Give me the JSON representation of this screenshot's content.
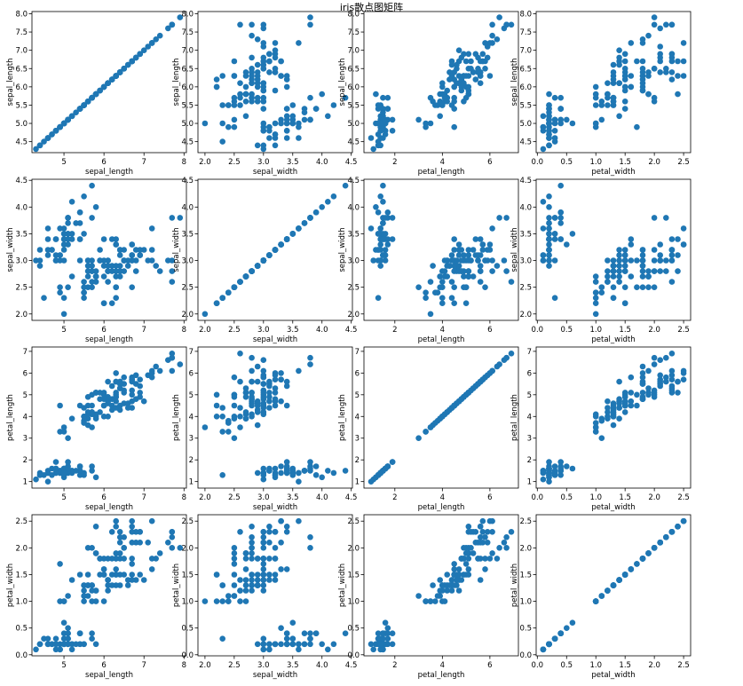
{
  "title": "iris散点图矩阵",
  "point_color": "#1f77b4",
  "chart_data": {
    "type": "scatter",
    "variables": [
      "sepal_length",
      "sepal_width",
      "petal_length",
      "petal_width"
    ],
    "samples": {
      "sepal_length": [
        5.1,
        4.9,
        4.7,
        4.6,
        5.0,
        5.4,
        4.6,
        5.0,
        4.4,
        4.9,
        5.4,
        4.8,
        4.8,
        4.3,
        5.8,
        5.7,
        5.4,
        5.1,
        5.7,
        5.1,
        5.4,
        5.1,
        4.6,
        5.1,
        4.8,
        5.0,
        5.0,
        5.2,
        5.2,
        4.7,
        4.8,
        5.4,
        5.2,
        5.5,
        4.9,
        5.0,
        5.5,
        4.9,
        4.4,
        5.1,
        5.0,
        4.5,
        4.4,
        5.0,
        5.1,
        4.8,
        5.1,
        4.6,
        5.3,
        5.0,
        7.0,
        6.4,
        6.9,
        5.5,
        6.5,
        5.7,
        6.3,
        4.9,
        6.6,
        5.2,
        5.0,
        5.9,
        6.0,
        6.1,
        5.6,
        6.7,
        5.6,
        5.8,
        6.2,
        5.6,
        5.9,
        6.1,
        6.3,
        6.1,
        6.4,
        6.6,
        6.8,
        6.7,
        6.0,
        5.7,
        5.5,
        5.5,
        5.8,
        6.0,
        5.4,
        6.0,
        6.7,
        6.3,
        5.6,
        5.5,
        5.5,
        6.1,
        5.8,
        5.0,
        5.6,
        5.7,
        5.7,
        6.2,
        5.1,
        5.7,
        6.3,
        5.8,
        7.1,
        6.3,
        6.5,
        7.6,
        4.9,
        7.3,
        6.7,
        7.2,
        6.5,
        6.4,
        6.8,
        5.7,
        5.8,
        6.4,
        6.5,
        7.7,
        7.7,
        6.0,
        6.9,
        5.6,
        7.7,
        6.3,
        6.7,
        7.2,
        6.2,
        6.1,
        6.4,
        7.2,
        7.4,
        7.9,
        6.4,
        6.3,
        6.1,
        7.7,
        6.3,
        6.4,
        6.0,
        6.9,
        6.7,
        6.9,
        5.8,
        6.8,
        6.7,
        6.7,
        6.3,
        6.5,
        6.2,
        5.9
      ],
      "sepal_width": [
        3.5,
        3.0,
        3.2,
        3.1,
        3.6,
        3.9,
        3.4,
        3.4,
        2.9,
        3.1,
        3.7,
        3.4,
        3.0,
        3.0,
        4.0,
        4.4,
        3.9,
        3.5,
        3.8,
        3.8,
        3.4,
        3.7,
        3.6,
        3.3,
        3.4,
        3.0,
        3.4,
        3.5,
        3.4,
        3.2,
        3.1,
        3.4,
        4.1,
        4.2,
        3.1,
        3.2,
        3.5,
        3.6,
        3.0,
        3.4,
        3.5,
        2.3,
        3.2,
        3.5,
        3.8,
        3.0,
        3.8,
        3.2,
        3.7,
        3.3,
        3.2,
        3.2,
        3.1,
        2.3,
        2.8,
        2.8,
        3.3,
        2.4,
        2.9,
        2.7,
        2.0,
        3.0,
        2.2,
        2.9,
        2.9,
        3.1,
        3.0,
        2.7,
        2.2,
        2.5,
        3.2,
        2.8,
        2.5,
        2.8,
        2.9,
        3.0,
        2.8,
        3.0,
        2.9,
        2.6,
        2.4,
        2.4,
        2.7,
        2.7,
        3.0,
        3.4,
        3.1,
        2.3,
        3.0,
        2.5,
        2.6,
        3.0,
        2.6,
        2.3,
        2.7,
        3.0,
        2.9,
        2.9,
        2.5,
        2.8,
        3.3,
        2.7,
        3.0,
        2.9,
        3.0,
        3.0,
        2.5,
        2.9,
        2.5,
        3.6,
        3.2,
        2.7,
        3.0,
        2.5,
        2.8,
        3.2,
        3.0,
        3.8,
        2.6,
        2.2,
        3.2,
        2.8,
        2.8,
        2.7,
        3.3,
        3.2,
        2.8,
        3.0,
        2.8,
        3.0,
        2.8,
        3.8,
        2.8,
        2.8,
        2.6,
        3.0,
        3.4,
        3.1,
        3.0,
        3.1,
        3.1,
        3.1,
        2.7,
        3.2,
        3.3,
        3.0,
        2.5,
        3.0,
        3.4,
        3.0
      ],
      "petal_length": [
        1.4,
        1.4,
        1.3,
        1.5,
        1.4,
        1.7,
        1.4,
        1.5,
        1.4,
        1.5,
        1.5,
        1.6,
        1.4,
        1.1,
        1.2,
        1.5,
        1.3,
        1.4,
        1.7,
        1.5,
        1.7,
        1.5,
        1.0,
        1.7,
        1.9,
        1.6,
        1.6,
        1.5,
        1.4,
        1.6,
        1.6,
        1.5,
        1.5,
        1.4,
        1.5,
        1.2,
        1.3,
        1.4,
        1.3,
        1.5,
        1.3,
        1.3,
        1.3,
        1.6,
        1.9,
        1.4,
        1.6,
        1.4,
        1.5,
        1.4,
        4.7,
        4.5,
        4.9,
        4.0,
        4.6,
        4.5,
        4.7,
        3.3,
        4.6,
        3.9,
        3.5,
        4.2,
        4.0,
        4.7,
        3.6,
        4.4,
        4.5,
        4.1,
        4.5,
        3.9,
        4.8,
        4.0,
        4.9,
        4.7,
        4.3,
        4.4,
        4.8,
        5.0,
        4.5,
        3.5,
        3.8,
        3.7,
        3.9,
        5.1,
        4.5,
        4.5,
        4.7,
        4.4,
        4.1,
        4.0,
        4.4,
        4.6,
        4.0,
        3.3,
        4.2,
        4.2,
        4.2,
        4.3,
        3.0,
        4.1,
        6.0,
        5.1,
        5.9,
        5.6,
        5.8,
        6.6,
        4.5,
        6.3,
        5.8,
        6.1,
        5.1,
        5.3,
        5.5,
        5.0,
        5.1,
        5.3,
        5.5,
        6.7,
        6.9,
        5.0,
        5.7,
        4.9,
        6.7,
        4.9,
        5.7,
        6.0,
        4.8,
        4.9,
        5.6,
        5.8,
        6.1,
        6.4,
        5.6,
        5.1,
        5.6,
        6.1,
        5.6,
        5.5,
        4.8,
        5.4,
        5.6,
        5.1,
        5.1,
        5.9,
        5.7,
        5.2,
        5.0,
        5.2,
        5.4,
        5.1
      ],
      "petal_width": [
        0.2,
        0.2,
        0.2,
        0.2,
        0.2,
        0.4,
        0.3,
        0.2,
        0.2,
        0.1,
        0.2,
        0.2,
        0.1,
        0.1,
        0.2,
        0.4,
        0.4,
        0.3,
        0.3,
        0.3,
        0.2,
        0.4,
        0.2,
        0.5,
        0.2,
        0.2,
        0.4,
        0.2,
        0.2,
        0.2,
        0.2,
        0.4,
        0.1,
        0.2,
        0.1,
        0.2,
        0.2,
        0.1,
        0.2,
        0.2,
        0.3,
        0.3,
        0.2,
        0.6,
        0.4,
        0.3,
        0.2,
        0.2,
        0.2,
        0.2,
        1.4,
        1.5,
        1.5,
        1.3,
        1.5,
        1.3,
        1.6,
        1.0,
        1.3,
        1.4,
        1.0,
        1.5,
        1.0,
        1.4,
        1.3,
        1.4,
        1.5,
        1.0,
        1.5,
        1.1,
        1.8,
        1.3,
        1.5,
        1.2,
        1.3,
        1.4,
        1.4,
        1.7,
        1.5,
        1.0,
        1.1,
        1.0,
        1.2,
        1.6,
        1.5,
        1.6,
        1.5,
        1.3,
        1.3,
        1.3,
        1.2,
        1.4,
        1.2,
        1.0,
        1.3,
        1.2,
        1.3,
        1.3,
        1.1,
        1.3,
        2.5,
        1.9,
        2.1,
        1.8,
        2.2,
        2.1,
        1.7,
        1.8,
        1.8,
        2.5,
        2.0,
        1.9,
        2.1,
        2.0,
        2.4,
        2.3,
        1.8,
        2.2,
        2.3,
        1.5,
        2.3,
        2.0,
        2.0,
        1.8,
        2.1,
        1.8,
        1.8,
        1.8,
        2.1,
        1.6,
        1.9,
        2.0,
        2.2,
        1.5,
        1.4,
        2.3,
        2.4,
        1.8,
        1.8,
        2.1,
        2.4,
        2.3,
        1.9,
        2.3,
        2.5,
        2.3,
        1.9,
        2.0,
        2.3,
        1.8
      ]
    },
    "axes": {
      "sepal_length": {
        "label": "sepal_length",
        "range": [
          4.2,
          8.06
        ],
        "ticks": [
          5,
          6,
          7,
          8
        ],
        "tick_labels": [
          "5",
          "6",
          "7",
          "8"
        ],
        "ytick_labels": [
          "4.5",
          "5.0",
          "5.5",
          "6.0",
          "6.5",
          "7.0",
          "7.5",
          "8.0"
        ]
      },
      "sepal_width": {
        "label": "sepal_width",
        "range": [
          1.88,
          4.52
        ],
        "ticks": [
          2.0,
          2.5,
          3.0,
          3.5,
          4.0,
          4.5
        ],
        "tick_labels": [
          "2.0",
          "2.5",
          "3.0",
          "3.5",
          "4.0",
          "4.5"
        ]
      },
      "petal_length": {
        "label": "petal_length",
        "range": [
          0.7,
          7.2
        ],
        "ticks": [
          2,
          4,
          6
        ],
        "tick_labels": [
          "2",
          "4",
          "6"
        ],
        "ytick_labels": [
          "1",
          "2",
          "3",
          "4",
          "5",
          "6",
          "7"
        ]
      },
      "petal_width": {
        "label": "petal_width",
        "range": [
          -0.02,
          2.62
        ],
        "ticks": [
          0.0,
          0.5,
          1.0,
          1.5,
          2.0,
          2.5
        ],
        "tick_labels": [
          "0.0",
          "0.5",
          "1.0",
          "1.5",
          "2.0",
          "2.5"
        ]
      }
    },
    "grid": false,
    "legend": "none"
  }
}
